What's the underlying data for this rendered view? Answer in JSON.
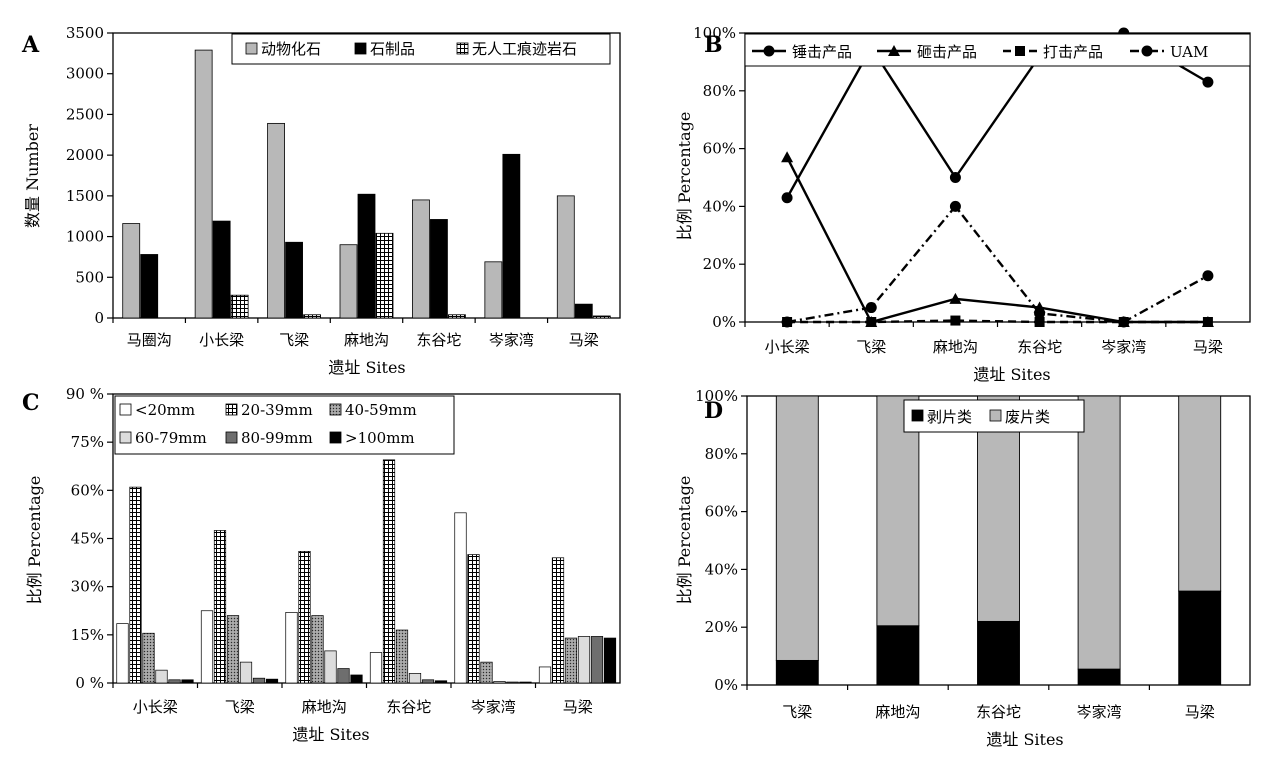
{
  "figure": {
    "panels": [
      "A",
      "B",
      "C",
      "D"
    ]
  },
  "chart_data": [
    {
      "id": "A",
      "type": "bar",
      "xlabel": "遗址  Sites",
      "ylabel": "数量  Number",
      "ylim": [
        0,
        3500
      ],
      "yticks": [
        "0",
        "500",
        "1000",
        "1500",
        "2000",
        "2500",
        "3000",
        "3500"
      ],
      "categories": [
        "马圈沟",
        "小长梁",
        "飞梁",
        "麻地沟",
        "东谷坨",
        "岑家湾",
        "马梁"
      ],
      "legend_position": "top",
      "series": [
        {
          "name": "动物化石",
          "fill": "gray",
          "values": [
            1160,
            3290,
            2390,
            900,
            1450,
            690,
            1500
          ]
        },
        {
          "name": "石制品",
          "fill": "black",
          "values": [
            780,
            1190,
            930,
            1520,
            1210,
            2010,
            170
          ]
        },
        {
          "name": "无人工痕迹岩石",
          "fill": "grid",
          "values": [
            0,
            280,
            40,
            1040,
            40,
            0,
            25
          ]
        }
      ]
    },
    {
      "id": "B",
      "type": "line",
      "xlabel": "遗址  Sites",
      "ylabel": "比例  Percentage",
      "ylim": [
        0,
        100
      ],
      "yticks": [
        "0%",
        "20%",
        "40%",
        "60%",
        "80%",
        "100%"
      ],
      "categories": [
        "小长梁",
        "飞梁",
        "麻地沟",
        "东谷坨",
        "岑家湾",
        "马梁"
      ],
      "legend_position": "top",
      "series": [
        {
          "name": "锤击产品",
          "marker": "circle",
          "dash": "solid",
          "values": [
            43,
            95,
            50,
            92,
            100,
            83
          ]
        },
        {
          "name": "砸击产品",
          "marker": "triangle",
          "dash": "solid",
          "values": [
            57,
            0,
            8,
            5,
            0,
            0
          ]
        },
        {
          "name": "打击产品",
          "marker": "square",
          "dash": "dashed",
          "values": [
            0,
            0,
            0.5,
            0,
            0,
            0
          ]
        },
        {
          "name": "UAM",
          "marker": "circle",
          "dash": "dashdot",
          "values": [
            0,
            5,
            40,
            3,
            0,
            16
          ]
        }
      ]
    },
    {
      "id": "C",
      "type": "bar",
      "xlabel": "遗址  Sites",
      "ylabel": "比例  Percentage",
      "ylim": [
        0,
        90
      ],
      "yticks": [
        "0 %",
        "15%",
        "30%",
        "45%",
        "60%",
        "75%",
        "90 %"
      ],
      "categories": [
        "小长梁",
        "飞梁",
        "麻地沟",
        "东谷坨",
        "岑家湾",
        "马梁"
      ],
      "legend_position": "top",
      "series": [
        {
          "name": "<20mm",
          "fill": "white",
          "values": [
            18.5,
            22.5,
            22,
            9.5,
            53,
            5
          ]
        },
        {
          "name": "20-39mm",
          "fill": "grid",
          "values": [
            61,
            47.5,
            41,
            69.5,
            40,
            39
          ]
        },
        {
          "name": "40-59mm",
          "fill": "dots",
          "values": [
            15.5,
            21,
            21,
            16.5,
            6.5,
            14
          ]
        },
        {
          "name": "60-79mm",
          "fill": "lightgray",
          "values": [
            4,
            6.5,
            10,
            3,
            0.5,
            14.5
          ]
        },
        {
          "name": "80-99mm",
          "fill": "darkgray",
          "values": [
            1,
            1.5,
            4.5,
            1,
            0.3,
            14.5
          ]
        },
        {
          "name": ">100mm",
          "fill": "black",
          "values": [
            1,
            1.2,
            2.5,
            0.7,
            0.3,
            14
          ]
        }
      ]
    },
    {
      "id": "D",
      "type": "bar",
      "stacked": true,
      "xlabel": "遗址  Sites",
      "ylabel": "比例  Percentage",
      "ylim": [
        0,
        100
      ],
      "yticks": [
        "0%",
        "20%",
        "40%",
        "60%",
        "80%",
        "100%"
      ],
      "categories": [
        "飞梁",
        "麻地沟",
        "东谷坨",
        "岑家湾",
        "马梁"
      ],
      "legend_position": "top",
      "series": [
        {
          "name": "剥片类",
          "fill": "black",
          "values": [
            8.5,
            20.5,
            22,
            5.5,
            32.5
          ]
        },
        {
          "name": "废片类",
          "fill": "gray",
          "values": [
            91.5,
            79.5,
            78,
            94.5,
            67.5
          ]
        }
      ]
    }
  ]
}
